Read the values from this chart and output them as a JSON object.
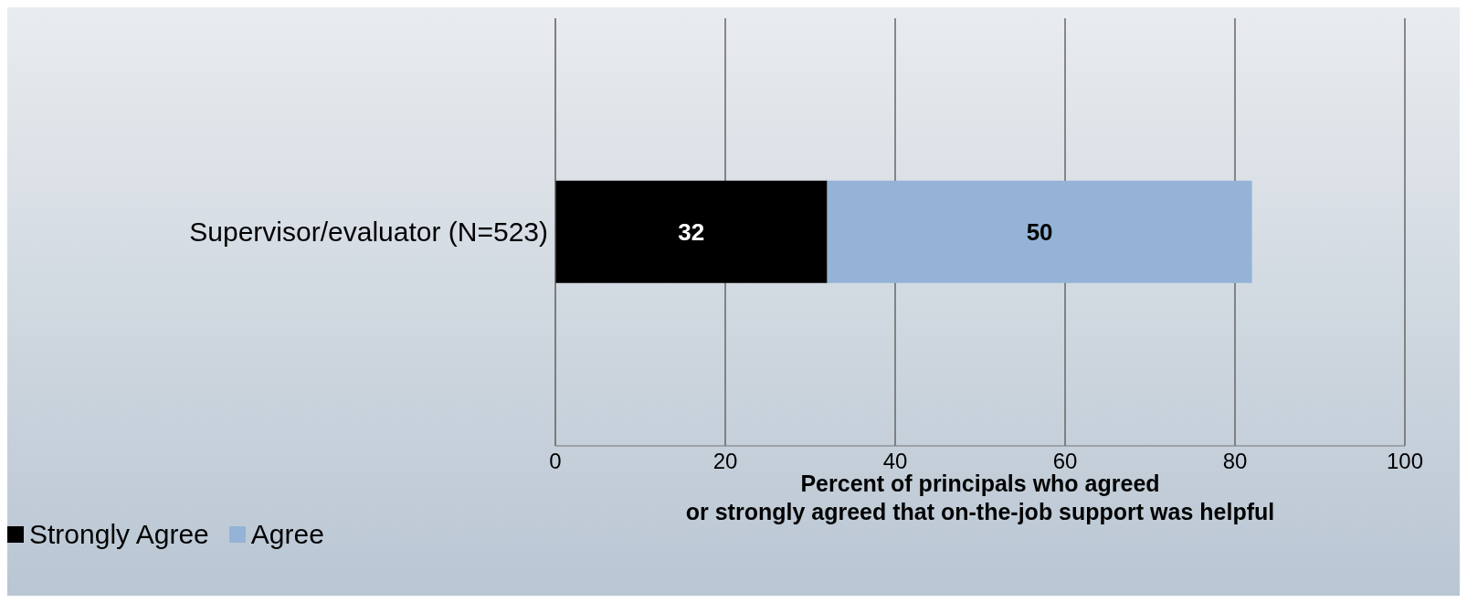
{
  "chart_data": {
    "type": "bar",
    "orientation": "horizontal",
    "stacked": true,
    "categories": [
      "Supervisor/evaluator (N=523)"
    ],
    "series": [
      {
        "name": "Strongly Agree",
        "color": "#000000",
        "values": [
          32
        ]
      },
      {
        "name": "Agree",
        "color": "#95b3d7",
        "values": [
          50
        ]
      }
    ],
    "xlim": [
      0,
      100
    ],
    "xticks": [
      0,
      20,
      40,
      60,
      80,
      100
    ],
    "grid": "x",
    "data_labels": true,
    "legend": "bottom left",
    "xlabel": "Percent of principals who agreed\nor strongly agreed that on-the-job support was helpful"
  }
}
